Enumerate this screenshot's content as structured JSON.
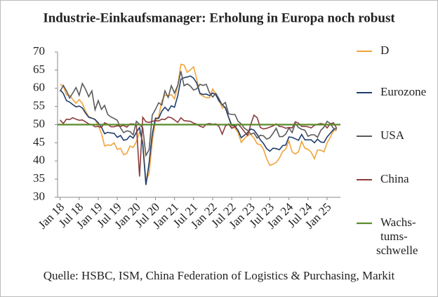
{
  "chart_data": {
    "type": "line",
    "title": "Industrie-Einkaufsmanager: Erholung in Europa noch robust",
    "source": "Quelle: HSBC, ISM, China Federation of Logistics & Purchasing, Markit",
    "categories": [
      "Jan 18",
      null,
      null,
      null,
      null,
      null,
      "Jul 18",
      null,
      null,
      null,
      null,
      null,
      "Jan 19",
      null,
      null,
      null,
      null,
      null,
      "Jul 19",
      null,
      null,
      null,
      null,
      null,
      "Jan 20",
      null,
      null,
      null,
      null,
      null,
      "Jul 20",
      null,
      null,
      null,
      null,
      null,
      "Jan 21",
      null,
      null,
      null,
      null,
      null,
      "Jul 21",
      null,
      null,
      null,
      null,
      null,
      "Jan 22",
      null,
      null,
      null,
      null,
      null,
      "Jul 22",
      null,
      null,
      null,
      null,
      null,
      "Jan 23",
      null,
      null,
      null,
      null,
      null,
      "Jul 23",
      null,
      null,
      null,
      null,
      null,
      "Jan 24",
      null,
      null,
      null,
      null,
      null,
      "Jul 24",
      null,
      null,
      null,
      null,
      null,
      "Jan 25",
      null,
      null,
      null
    ],
    "series": [
      {
        "name": "D",
        "color": "#f0a43a",
        "values": [
          61.1,
          60.6,
          58.2,
          58.1,
          56.9,
          55.9,
          56.9,
          55.9,
          53.7,
          52.2,
          51.8,
          51.5,
          49.7,
          47.6,
          44.1,
          44.4,
          44.3,
          45.0,
          43.2,
          43.5,
          41.7,
          42.1,
          44.1,
          43.7,
          45.3,
          48.0,
          45.4,
          34.5,
          36.6,
          45.2,
          51.0,
          52.2,
          56.4,
          58.2,
          57.8,
          58.3,
          57.1,
          60.7,
          66.6,
          66.4,
          64.4,
          65.1,
          65.9,
          62.6,
          58.4,
          57.8,
          57.4,
          57.4,
          59.8,
          58.4,
          56.9,
          54.6,
          54.8,
          52.0,
          49.3,
          49.1,
          47.8,
          45.1,
          46.2,
          47.1,
          47.3,
          46.3,
          44.7,
          44.5,
          43.2,
          40.6,
          38.8,
          39.1,
          39.6,
          40.8,
          42.6,
          43.3,
          45.5,
          42.5,
          41.9,
          42.5,
          45.4,
          43.5,
          43.2,
          42.4,
          40.6,
          43.0,
          43.0,
          42.5,
          45.0,
          46.5,
          48.3,
          48.4
        ]
      },
      {
        "name": "Eurozone",
        "color": "#1f3d6e",
        "values": [
          59.6,
          58.6,
          56.6,
          56.2,
          55.5,
          54.9,
          55.1,
          54.6,
          53.2,
          52.0,
          51.8,
          51.4,
          50.5,
          49.3,
          47.5,
          47.9,
          47.7,
          47.6,
          46.5,
          47.0,
          45.7,
          45.9,
          46.9,
          46.3,
          47.9,
          49.2,
          44.5,
          33.4,
          39.4,
          47.4,
          51.8,
          51.7,
          53.7,
          54.8,
          53.8,
          55.2,
          54.8,
          57.9,
          62.5,
          62.9,
          63.1,
          63.4,
          62.8,
          61.4,
          58.6,
          58.3,
          58.4,
          58.0,
          58.7,
          58.2,
          56.5,
          55.5,
          54.6,
          52.1,
          49.8,
          49.6,
          48.4,
          46.4,
          47.1,
          47.8,
          48.8,
          48.5,
          47.3,
          45.8,
          44.8,
          43.4,
          42.7,
          43.5,
          43.4,
          43.1,
          44.2,
          44.4,
          46.6,
          46.5,
          46.1,
          45.7,
          47.3,
          45.8,
          45.8,
          45.8,
          45.0,
          46.0,
          45.2,
          45.1,
          46.6,
          47.6,
          48.6,
          49.0
        ]
      },
      {
        "name": "USA",
        "color": "#5a5a5a",
        "values": [
          59.1,
          60.8,
          59.3,
          57.3,
          58.7,
          60.2,
          58.1,
          61.3,
          59.8,
          57.7,
          59.3,
          54.1,
          56.6,
          54.2,
          55.3,
          52.8,
          52.1,
          51.7,
          51.2,
          49.1,
          47.8,
          48.3,
          48.1,
          47.2,
          50.9,
          50.1,
          49.1,
          41.5,
          43.1,
          52.6,
          54.2,
          56.0,
          55.4,
          59.3,
          57.5,
          60.7,
          58.7,
          60.8,
          64.7,
          60.7,
          61.2,
          60.6,
          59.5,
          59.9,
          61.1,
          60.8,
          61.1,
          58.8,
          57.6,
          58.6,
          57.1,
          55.4,
          56.1,
          53.0,
          52.8,
          52.8,
          50.9,
          50.2,
          49.0,
          48.4,
          47.4,
          47.7,
          46.3,
          47.1,
          46.9,
          46.0,
          46.4,
          47.6,
          49.0,
          46.7,
          46.7,
          47.4,
          49.1,
          47.8,
          50.3,
          49.2,
          48.7,
          48.5,
          46.8,
          47.2,
          47.2,
          46.5,
          48.4,
          49.3,
          50.9,
          50.3,
          49.0,
          48.7
        ]
      },
      {
        "name": "China",
        "color": "#8c3b3b",
        "values": [
          51.3,
          50.3,
          51.5,
          51.4,
          51.9,
          51.5,
          51.2,
          51.3,
          50.8,
          50.2,
          50.0,
          49.4,
          49.5,
          49.2,
          50.5,
          50.1,
          49.4,
          49.4,
          49.7,
          49.5,
          49.8,
          49.3,
          50.2,
          50.2,
          50.0,
          35.7,
          52.0,
          50.8,
          50.6,
          50.9,
          51.1,
          51.0,
          51.5,
          51.4,
          52.1,
          51.9,
          51.3,
          50.6,
          51.9,
          51.1,
          51.0,
          50.9,
          50.4,
          50.1,
          49.6,
          49.2,
          50.1,
          50.3,
          50.1,
          50.2,
          49.5,
          47.4,
          49.6,
          50.2,
          49.0,
          49.4,
          50.1,
          49.2,
          48.0,
          47.0,
          50.1,
          52.6,
          51.9,
          49.2,
          48.8,
          49.0,
          49.3,
          49.7,
          50.2,
          49.5,
          49.4,
          49.0,
          49.2,
          49.1,
          50.8,
          50.4,
          49.5,
          49.5,
          49.4,
          49.1,
          49.8,
          50.1,
          50.3,
          50.1,
          49.1,
          50.2,
          50.5,
          49.0
        ]
      }
    ],
    "threshold": {
      "name": [
        "Wachs-",
        "tums-",
        "schwelle"
      ],
      "value": 50,
      "color": "#5b8a2b"
    },
    "ylim": [
      30,
      70
    ],
    "yticks": [
      30,
      35,
      40,
      45,
      50,
      55,
      60,
      65,
      70
    ],
    "grid": false
  }
}
